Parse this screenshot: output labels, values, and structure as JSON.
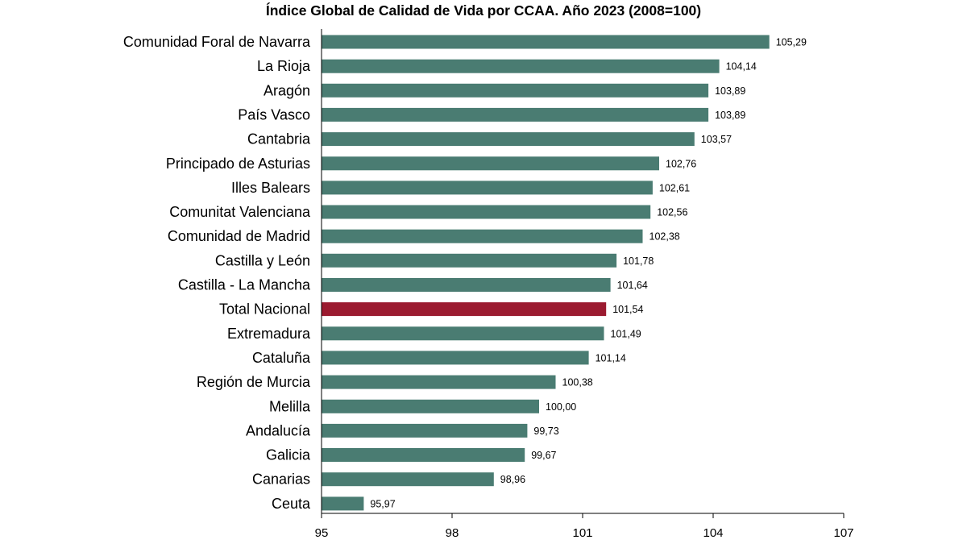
{
  "chart_data": {
    "type": "bar",
    "orientation": "horizontal",
    "title": "Índice Global de Calidad de Vida por CCAA. Año 2023 (2008=100)",
    "xlabel": "",
    "ylabel": "",
    "xlim": [
      95,
      107
    ],
    "x_ticks": [
      "95",
      "98",
      "101",
      "104",
      "107"
    ],
    "x_tick_values": [
      95,
      98,
      101,
      104,
      107
    ],
    "grid": false,
    "colors": {
      "default": "#4a7c72",
      "highlight": "#9b1b30"
    },
    "categories": [
      "Comunidad Foral de Navarra",
      "La Rioja",
      "Aragón",
      "País Vasco",
      "Cantabria",
      "Principado de Asturias",
      "Illes Balears",
      "Comunitat Valenciana",
      "Comunidad de Madrid",
      "Castilla y León",
      "Castilla - La Mancha",
      "Total Nacional",
      "Extremadura",
      "Cataluña",
      "Región de Murcia",
      "Melilla",
      "Andalucía",
      "Galicia",
      "Canarias",
      "Ceuta"
    ],
    "values": [
      105.29,
      104.14,
      103.89,
      103.89,
      103.57,
      102.76,
      102.61,
      102.56,
      102.38,
      101.78,
      101.64,
      101.54,
      101.49,
      101.14,
      100.38,
      100.0,
      99.73,
      99.67,
      98.96,
      95.97
    ],
    "value_labels": [
      "105,29",
      "104,14",
      "103,89",
      "103,89",
      "103,57",
      "102,76",
      "102,61",
      "102,56",
      "102,38",
      "101,78",
      "101,64",
      "101,54",
      "101,49",
      "101,14",
      "100,38",
      "100,00",
      "99,73",
      "99,67",
      "98,96",
      "95,97"
    ],
    "highlight_category": "Total Nacional"
  }
}
